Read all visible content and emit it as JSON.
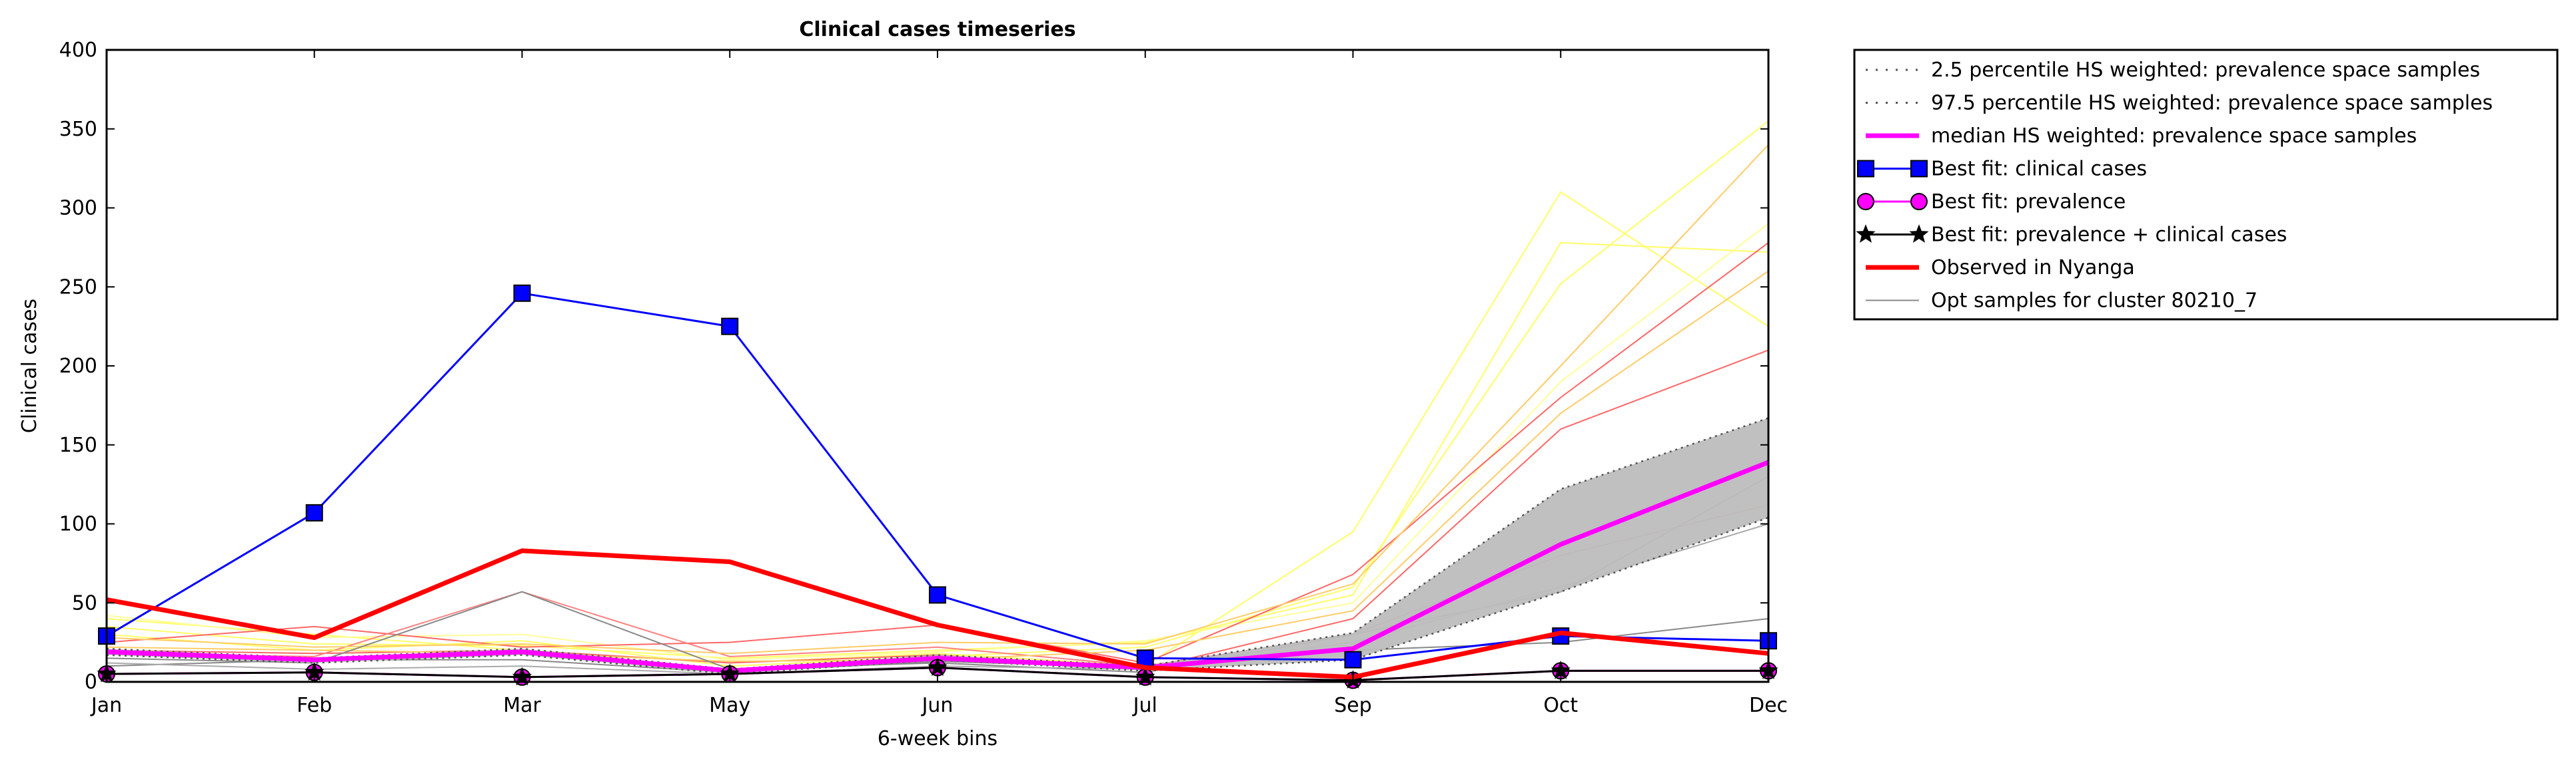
{
  "chart_data": {
    "type": "line",
    "title": "Clinical cases timeseries",
    "xlabel": "6-week bins",
    "ylabel": "Clinical cases",
    "categories": [
      "Jan",
      "Feb",
      "Mar",
      "May",
      "Jun",
      "Jul",
      "Sep",
      "Oct",
      "Dec"
    ],
    "ylim": [
      0,
      400
    ],
    "yticks": [
      0,
      50,
      100,
      150,
      200,
      250,
      300,
      350,
      400
    ],
    "grid": false,
    "legend_placement": "outside-right",
    "band": {
      "lower_name": "2.5 percentile HS weighted: prevalence space samples",
      "upper_name": "97.5 percentile HS weighted: prevalence space samples",
      "lower": [
        17,
        12,
        17,
        5,
        14,
        7,
        14,
        57,
        104
      ],
      "upper": [
        21,
        15,
        21,
        8,
        17,
        10,
        31,
        122,
        167
      ],
      "fill": "#bdbdbd",
      "line_color": "#555555"
    },
    "series": [
      {
        "name": "median HS weighted: prevalence space samples",
        "values": [
          19,
          14,
          19,
          7,
          15,
          9,
          21,
          87,
          139
        ],
        "color": "#ff00ff",
        "style": "median"
      },
      {
        "name": "Best fit: clinical cases",
        "values": [
          29,
          107,
          246,
          225,
          55,
          15,
          14,
          29,
          26
        ],
        "color": "#0000ff",
        "style": "square"
      },
      {
        "name": "Best fit: prevalence",
        "values": [
          5,
          6,
          3,
          5,
          9,
          3,
          1,
          7,
          7
        ],
        "color": "#ff00ff",
        "style": "circle"
      },
      {
        "name": "Best fit: prevalence + clinical cases",
        "values": [
          5,
          6,
          3,
          5,
          9,
          3,
          1,
          7,
          7
        ],
        "color": "#000000",
        "style": "star"
      },
      {
        "name": "Observed in Nyanga",
        "values": [
          52,
          28,
          83,
          76,
          36,
          9,
          3,
          31,
          18
        ],
        "color": "#ff0000",
        "style": "observed"
      }
    ],
    "samples_name": "Opt samples for cluster 80210_7",
    "samples": [
      {
        "values": [
          40,
          30,
          20,
          12,
          18,
          10,
          95,
          310,
          225
        ],
        "color": "#ffff66"
      },
      {
        "values": [
          35,
          24,
          23,
          15,
          20,
          25,
          55,
          278,
          272
        ],
        "color": "#ffff66"
      },
      {
        "values": [
          30,
          20,
          26,
          10,
          16,
          22,
          60,
          252,
          355
        ],
        "color": "#ffff66"
      },
      {
        "values": [
          42,
          28,
          30,
          14,
          19,
          26,
          50,
          190,
          290
        ],
        "color": "#ffff99"
      },
      {
        "values": [
          25,
          35,
          22,
          25,
          36,
          12,
          68,
          180,
          278
        ],
        "color": "#ff6666"
      },
      {
        "values": [
          20,
          18,
          20,
          12,
          17,
          8,
          40,
          160,
          210
        ],
        "color": "#ff6666"
      },
      {
        "values": [
          18,
          16,
          57,
          16,
          22,
          10,
          30,
          80,
          112
        ],
        "color": "#ff8080"
      },
      {
        "values": [
          28,
          22,
          24,
          18,
          25,
          24,
          62,
          200,
          340
        ],
        "color": "#ffcc66"
      },
      {
        "values": [
          22,
          20,
          18,
          13,
          14,
          20,
          45,
          170,
          260
        ],
        "color": "#ffcc66"
      },
      {
        "values": [
          15,
          12,
          57,
          8,
          12,
          6,
          30,
          57,
          130
        ],
        "color": "#888888"
      },
      {
        "values": [
          10,
          14,
          14,
          6,
          13,
          9,
          20,
          25,
          40
        ],
        "color": "#888888"
      },
      {
        "values": [
          12,
          8,
          10,
          5,
          10,
          8,
          25,
          60,
          100
        ],
        "color": "#aaaaaa"
      }
    ]
  }
}
